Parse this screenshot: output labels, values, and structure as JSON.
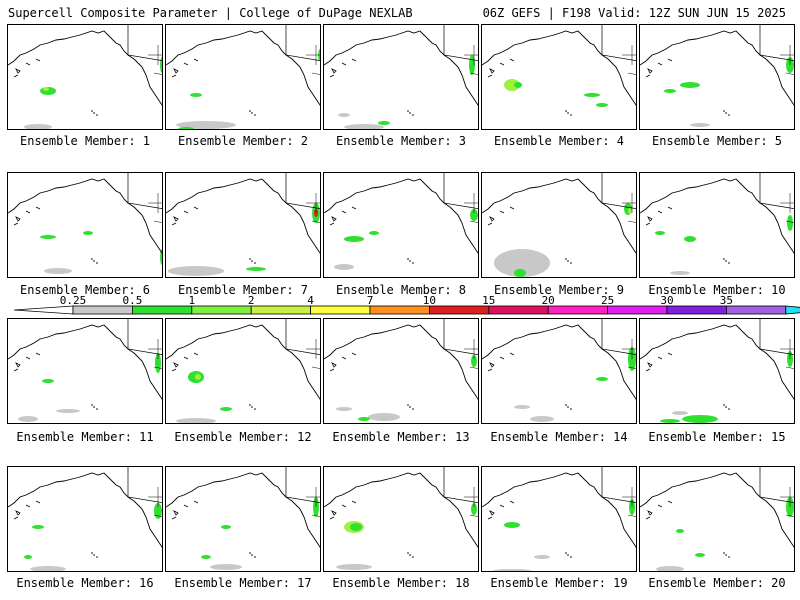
{
  "header": {
    "left": "Supercell Composite Parameter | College of DuPage NEXLAB",
    "right": "06Z GEFS | F198 Valid: 12Z SUN JUN 15 2025"
  },
  "members": [
    "Ensemble Member: 1",
    "Ensemble Member: 2",
    "Ensemble Member: 3",
    "Ensemble Member: 4",
    "Ensemble Member: 5",
    "Ensemble Member: 6",
    "Ensemble Member: 7",
    "Ensemble Member: 8",
    "Ensemble Member: 9",
    "Ensemble Member: 10",
    "Ensemble Member: 11",
    "Ensemble Member: 12",
    "Ensemble Member: 13",
    "Ensemble Member: 14",
    "Ensemble Member: 15",
    "Ensemble Member: 16",
    "Ensemble Member: 17",
    "Ensemble Member: 18",
    "Ensemble Member: 19",
    "Ensemble Member: 20"
  ],
  "colorbar": {
    "ticks": [
      "0.25",
      "0.5",
      "1",
      "2",
      "4",
      "7",
      "10",
      "15",
      "20",
      "25",
      "30",
      "35"
    ],
    "colors": [
      "#c8c8c8",
      "#30e030",
      "#80f040",
      "#c8f040",
      "#ffff40",
      "#ff9020",
      "#e02020",
      "#e01060",
      "#ff20c0",
      "#e020f0",
      "#8020e0",
      "#a060e0",
      "#20e0f0"
    ]
  },
  "fill_colors": {
    "light": "#c8c8c8",
    "green": "#30e030",
    "lime": "#a0f040",
    "red": "#e02020"
  }
}
